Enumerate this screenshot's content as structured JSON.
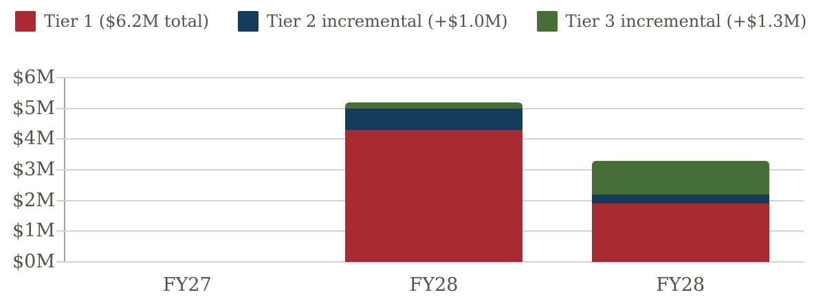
{
  "colors": {
    "background": "#FFFFFF",
    "text": "#57514A",
    "gridline": "#D6D3CE",
    "axis": "#A5A19A",
    "tier1_red": "#A92A30",
    "tier2_navy": "#123B5C",
    "tier3_green": "#476E36"
  },
  "chart_data": {
    "type": "bar",
    "stacked": true,
    "title": "",
    "xlabel": "",
    "ylabel": "",
    "units": "USD millions",
    "grid": true,
    "legend_position": "top",
    "categories": [
      "FY27",
      "FY28",
      "FY28"
    ],
    "series": [
      {
        "name": "Tier 1 ($6.2M total)",
        "color": "#A92A30",
        "values": [
          0,
          4.3,
          1.9
        ]
      },
      {
        "name": "Tier 2 incremental (+$1.0M)",
        "color": "#123B5C",
        "values": [
          0,
          0.7,
          0.3
        ]
      },
      {
        "name": "Tier 3 incremental (+$1.3M)",
        "color": "#476E36",
        "values": [
          0,
          0.2,
          1.1
        ]
      }
    ],
    "stack_totals": [
      0,
      5.2,
      3.3
    ],
    "ylim": [
      0,
      6
    ],
    "yticks": [
      {
        "value": 0,
        "label": "$0M"
      },
      {
        "value": 1,
        "label": "$1M"
      },
      {
        "value": 2,
        "label": "$2M"
      },
      {
        "value": 3,
        "label": "$3M"
      },
      {
        "value": 4,
        "label": "$4M"
      },
      {
        "value": 5,
        "label": "$5M"
      },
      {
        "value": 6,
        "label": "$6M"
      }
    ]
  }
}
